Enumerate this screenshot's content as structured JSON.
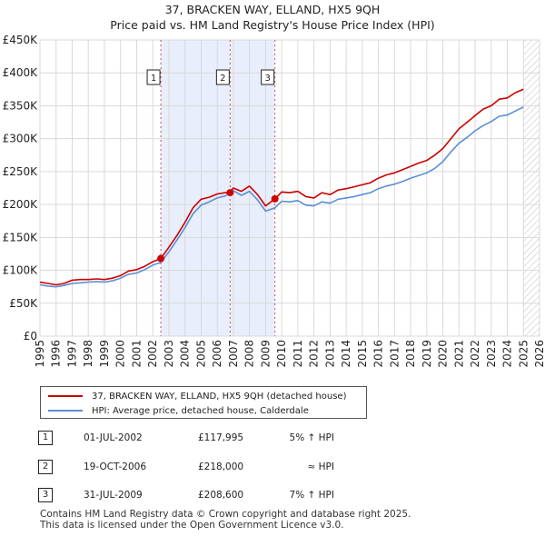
{
  "chart_data": {
    "type": "line",
    "title": "37, BRACKEN WAY, ELLAND, HX5 9QH",
    "subtitle": "Price paid vs. HM Land Registry's House Price Index (HPI)",
    "xlim": [
      1995,
      2026
    ],
    "ylim": [
      0,
      450000
    ],
    "x_ticks": [
      1995,
      1996,
      1997,
      1998,
      1999,
      2000,
      2001,
      2002,
      2003,
      2004,
      2005,
      2006,
      2007,
      2008,
      2009,
      2010,
      2011,
      2012,
      2013,
      2014,
      2015,
      2016,
      2017,
      2018,
      2019,
      2020,
      2021,
      2022,
      2023,
      2024,
      2025,
      2026
    ],
    "y_ticks": [
      {
        "value": 0,
        "label": "£0"
      },
      {
        "value": 50000,
        "label": "£50K"
      },
      {
        "value": 100000,
        "label": "£100K"
      },
      {
        "value": 150000,
        "label": "£150K"
      },
      {
        "value": 200000,
        "label": "£200K"
      },
      {
        "value": 250000,
        "label": "£250K"
      },
      {
        "value": 300000,
        "label": "£300K"
      },
      {
        "value": 350000,
        "label": "£350K"
      },
      {
        "value": 400000,
        "label": "£400K"
      },
      {
        "value": 450000,
        "label": "£450K"
      }
    ],
    "grid": true,
    "shaded_region": {
      "from": 2002.5,
      "to": 2009.58
    },
    "future_hatch_from": 2025.0,
    "series": [
      {
        "name": "37, BRACKEN WAY, ELLAND, HX5 9QH (detached house)",
        "color": "#cc0000",
        "x": [
          1995,
          1995.5,
          1996,
          1996.5,
          1997,
          1997.5,
          1998,
          1998.5,
          1999,
          1999.5,
          2000,
          2000.5,
          2001,
          2001.5,
          2002,
          2002.5,
          2003,
          2003.5,
          2004,
          2004.5,
          2005,
          2005.5,
          2006,
          2006.5,
          2006.8,
          2007,
          2007.5,
          2008,
          2008.5,
          2009,
          2009.58,
          2010,
          2010.5,
          2011,
          2011.5,
          2012,
          2012.5,
          2013,
          2013.5,
          2014,
          2014.5,
          2015,
          2015.5,
          2016,
          2016.5,
          2017,
          2017.5,
          2018,
          2018.5,
          2019,
          2019.5,
          2020,
          2020.5,
          2021,
          2021.5,
          2022,
          2022.5,
          2023,
          2023.5,
          2024,
          2024.5,
          2025
        ],
        "values": [
          82000,
          80000,
          78000,
          80000,
          85000,
          86000,
          86000,
          87000,
          86000,
          88000,
          92000,
          99000,
          101000,
          106000,
          113000,
          118000,
          135000,
          153000,
          173000,
          195000,
          208000,
          211000,
          216000,
          218000,
          219000,
          225000,
          220000,
          228000,
          215000,
          198000,
          208600,
          219000,
          218000,
          220000,
          212000,
          210000,
          218000,
          215000,
          222000,
          224000,
          227000,
          230000,
          233000,
          240000,
          245000,
          248000,
          253000,
          258000,
          263000,
          267000,
          275000,
          285000,
          300000,
          315000,
          325000,
          335000,
          345000,
          350000,
          360000,
          362000,
          370000,
          375000
        ]
      },
      {
        "name": "HPI: Average price, detached house, Calderdale",
        "color": "#5b8fd6",
        "x": [
          1995,
          1995.5,
          1996,
          1996.5,
          1997,
          1997.5,
          1998,
          1998.5,
          1999,
          1999.5,
          2000,
          2000.5,
          2001,
          2001.5,
          2002,
          2002.5,
          2003,
          2003.5,
          2004,
          2004.5,
          2005,
          2005.5,
          2006,
          2006.5,
          2006.8,
          2007,
          2007.5,
          2008,
          2008.5,
          2009,
          2009.58,
          2010,
          2010.5,
          2011,
          2011.5,
          2012,
          2012.5,
          2013,
          2013.5,
          2014,
          2014.5,
          2015,
          2015.5,
          2016,
          2016.5,
          2017,
          2017.5,
          2018,
          2018.5,
          2019,
          2019.5,
          2020,
          2020.5,
          2021,
          2021.5,
          2022,
          2022.5,
          2023,
          2023.5,
          2024,
          2024.5,
          2025
        ],
        "values": [
          78000,
          76000,
          75000,
          77000,
          80000,
          81000,
          82000,
          83000,
          82000,
          84000,
          88000,
          94000,
          96000,
          101000,
          108000,
          112000,
          128000,
          146000,
          165000,
          186000,
          199000,
          204000,
          210000,
          213000,
          218000,
          221000,
          214000,
          220000,
          207000,
          190000,
          195000,
          205000,
          204000,
          206000,
          199000,
          198000,
          204000,
          202000,
          208000,
          210000,
          212000,
          215000,
          218000,
          224000,
          228000,
          231000,
          235000,
          240000,
          244000,
          248000,
          255000,
          265000,
          280000,
          293000,
          302000,
          312000,
          320000,
          326000,
          334000,
          336000,
          342000,
          348000
        ]
      }
    ],
    "transactions": [
      {
        "num": "1",
        "x": 2002.5,
        "value": 117995,
        "date": "01-JUL-2002",
        "price": "£117,995",
        "hpi": "5% ↑ HPI"
      },
      {
        "num": "2",
        "x": 2006.8,
        "value": 218000,
        "date": "19-OCT-2006",
        "price": "£218,000",
        "hpi": "≈ HPI"
      },
      {
        "num": "3",
        "x": 2009.58,
        "value": 208600,
        "date": "31-JUL-2009",
        "price": "£208,600",
        "hpi": "7% ↑ HPI"
      }
    ]
  },
  "footer": {
    "line1": "Contains HM Land Registry data © Crown copyright and database right 2025.",
    "line2": "This data is licensed under the Open Government Licence v3.0."
  }
}
